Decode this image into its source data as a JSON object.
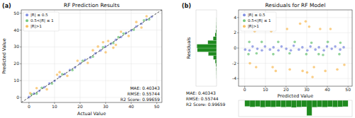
{
  "chart_data": [
    {
      "type": "scatter",
      "title": "RF Prediction Results",
      "x_label": "Actual Value",
      "y_label": "Predicted Value",
      "annotations": [
        "(a)",
        "MAE: 0.40343",
        "RMSE: 0.55744",
        "R2 Score: 0.99659"
      ],
      "xlim": [
        -3,
        52
      ],
      "ylim": [
        -3,
        52
      ],
      "xticks": [
        0,
        10,
        20,
        30,
        40,
        50
      ],
      "yticks": [
        0,
        10,
        20,
        30,
        40,
        50
      ],
      "grid": true,
      "legend": "upper left",
      "marker": "circle",
      "series": [
        {
          "name": "|R| ≤ 0.5",
          "color": "#4c5fd5",
          "x": [
            0,
            2,
            4,
            6,
            8,
            10,
            12,
            14,
            16,
            18,
            20,
            22,
            24,
            26,
            28,
            30,
            32,
            34,
            36,
            38,
            40,
            42,
            44,
            46,
            48
          ],
          "values": [
            0.2,
            2.3,
            3.8,
            6.1,
            8.3,
            9.8,
            12.2,
            13.9,
            16.3,
            17.8,
            20.1,
            22.3,
            23.7,
            26.2,
            27.9,
            30.3,
            31.8,
            34.2,
            35.9,
            38.3,
            39.8,
            42.1,
            43.8,
            46.2,
            47.9
          ]
        },
        {
          "name": "0.5<|R| ≤ 1",
          "color": "#3cb04a",
          "x": [
            1,
            5,
            9,
            13,
            17,
            21,
            25,
            29,
            33,
            37,
            41,
            45,
            47,
            3,
            35
          ],
          "values": [
            1.8,
            5.7,
            8.2,
            13.8,
            16.2,
            21.7,
            24.2,
            29.8,
            32.3,
            37.9,
            40.2,
            45.8,
            46.3,
            2.2,
            35.8
          ]
        },
        {
          "name": "|R|>1",
          "color": "#f5a623",
          "x": [
            0.5,
            3,
            7,
            11,
            15,
            19,
            23,
            27,
            30,
            31,
            34,
            36,
            39,
            42,
            44,
            46,
            29,
            33,
            12,
            25
          ],
          "values": [
            2.5,
            5.5,
            4.8,
            13.5,
            12.8,
            21.8,
            20.5,
            30.2,
            26.8,
            33.5,
            31.2,
            39.0,
            36.5,
            44.8,
            41.5,
            48.2,
            32.8,
            29.5,
            15.0,
            28.0
          ]
        }
      ]
    },
    {
      "type": "histogram",
      "orientation": "horizontal",
      "y_label": "Residuals",
      "color": "#1f8a1f",
      "tick_labels": false,
      "bins": [
        -4,
        -3.5,
        -3,
        -2.5,
        -2,
        -1.5,
        -1,
        -0.5,
        0,
        0.5,
        1,
        1.5,
        2,
        2.5,
        3,
        3.5,
        4
      ],
      "values": [
        2,
        4,
        8,
        15,
        30,
        70,
        180,
        420,
        430,
        190,
        75,
        32,
        16,
        8,
        4,
        2
      ],
      "xlim": [
        0,
        450
      ],
      "ylim": [
        -5,
        5
      ]
    },
    {
      "type": "scatter",
      "title": "Residuals for RF Model",
      "x_label": "Predicted Value",
      "annotations": [
        "(b)",
        "MAE: 0.40343",
        "RMSE: 0.55744",
        "R2 Score: 0.99659"
      ],
      "xlim": [
        -3,
        52
      ],
      "ylim": [
        -5,
        5
      ],
      "xticks": [
        0,
        10,
        20,
        30,
        40,
        50
      ],
      "yticks": [
        -4,
        -2,
        0,
        2,
        4
      ],
      "grid": true,
      "legend": "upper left",
      "marker": "circle",
      "series": [
        {
          "name": "|R| ≤ 0.5",
          "color": "#4c5fd5",
          "x": [
            0.2,
            2.3,
            3.8,
            6.1,
            8.3,
            9.8,
            12.2,
            13.9,
            16.3,
            17.8,
            20.1,
            22.3,
            23.7,
            26.2,
            27.9,
            30.3,
            31.8,
            34.2,
            35.9,
            38.3,
            39.8,
            42.1,
            43.8,
            46.2,
            47.9
          ],
          "values": [
            -0.2,
            -0.3,
            0.2,
            -0.1,
            -0.3,
            0.2,
            -0.2,
            0.1,
            -0.3,
            0.2,
            -0.1,
            -0.3,
            0.3,
            -0.2,
            0.1,
            -0.3,
            0.2,
            -0.2,
            0.1,
            -0.3,
            0.2,
            -0.1,
            0.2,
            -0.2,
            0.1
          ]
        },
        {
          "name": "0.5<|R| ≤ 1",
          "color": "#3cb04a",
          "x": [
            1.8,
            5.7,
            8.2,
            13.8,
            16.2,
            21.7,
            24.2,
            29.8,
            32.3,
            37.9,
            40.2,
            45.8,
            46.3,
            2.2,
            35.8
          ],
          "values": [
            -0.8,
            -0.7,
            0.8,
            -0.8,
            0.8,
            -0.7,
            0.8,
            -0.8,
            0.7,
            -0.9,
            0.8,
            -0.8,
            0.7,
            0.8,
            -0.8
          ]
        },
        {
          "name": "|R|>1",
          "color": "#f5a623",
          "x": [
            2.5,
            5.5,
            4.8,
            13.5,
            12.8,
            21.8,
            20.5,
            30.2,
            26.8,
            33.5,
            31.2,
            39.0,
            36.5,
            44.8,
            41.5,
            48.2,
            32.8,
            29.5,
            15.0,
            28.0
          ],
          "values": [
            -2.0,
            -2.5,
            2.2,
            -2.5,
            2.2,
            -2.8,
            2.5,
            -3.2,
            3.2,
            -2.5,
            2.8,
            -3.0,
            2.5,
            -2.8,
            2.5,
            -2.2,
            -3.8,
            3.5,
            -3.0,
            -3.0
          ]
        }
      ]
    },
    {
      "type": "histogram",
      "color": "#1f8a1f",
      "tick_labels": false,
      "bins": [
        0,
        2.5,
        5,
        7.5,
        10,
        12.5,
        15,
        17.5,
        20,
        22.5,
        25,
        27.5,
        30,
        32.5,
        35,
        37.5,
        40,
        42.5,
        45,
        47.5,
        50
      ],
      "values": [
        60,
        65,
        62,
        68,
        64,
        66,
        63,
        67,
        65,
        70,
        66,
        64,
        150,
        68,
        65,
        67,
        63,
        66,
        64,
        62
      ],
      "xlim": [
        -3,
        52
      ],
      "ylim": [
        0,
        160
      ]
    }
  ]
}
